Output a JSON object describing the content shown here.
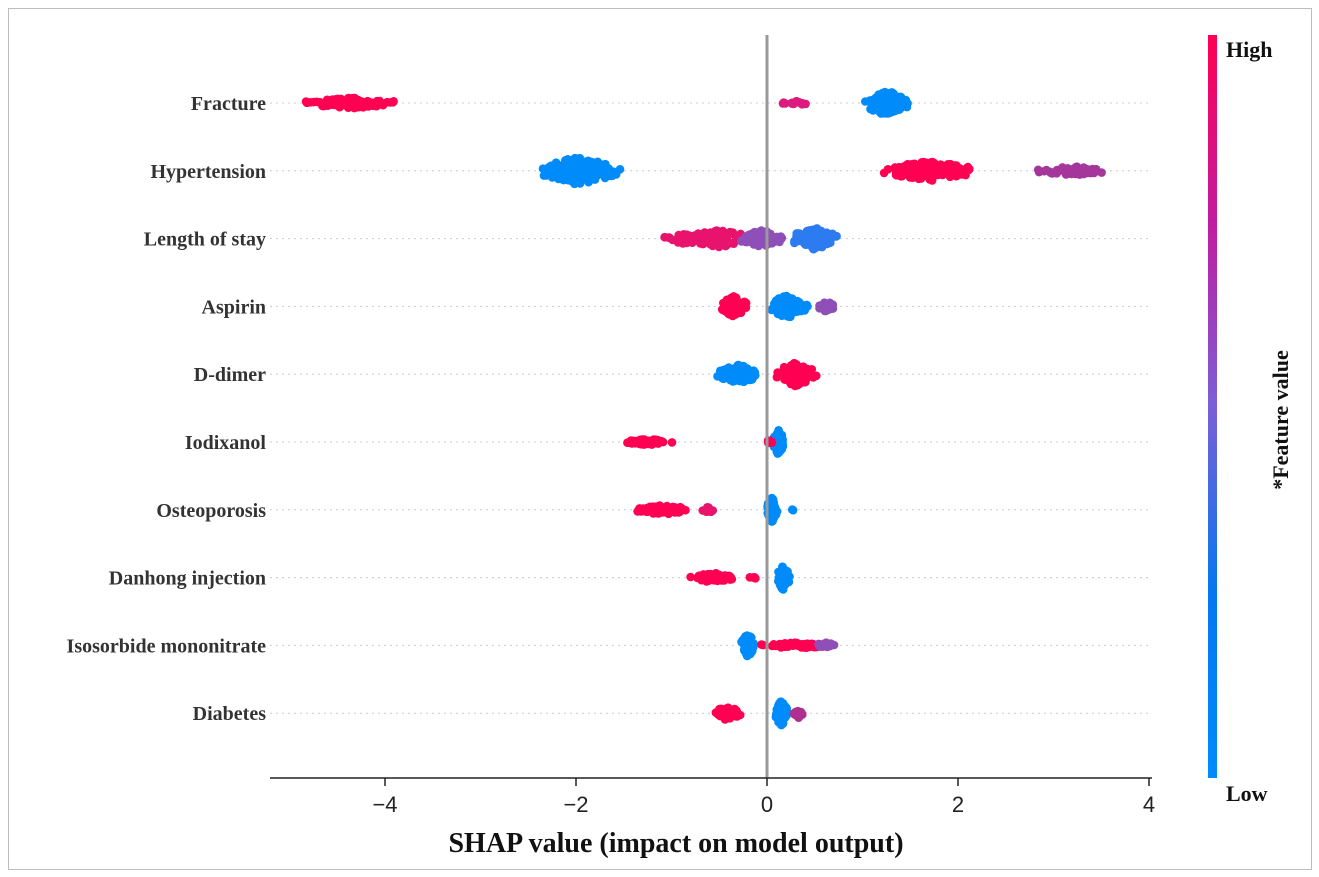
{
  "chart_data": {
    "type": "scatter",
    "title": "",
    "xlabel": "SHAP value (impact on model output)",
    "ylabel": "",
    "xlim": [
      -5.2,
      4.1
    ],
    "x_ticks": [
      -4,
      -2,
      0,
      2,
      4
    ],
    "x_tick_labels": [
      "−4",
      "−2",
      "0",
      "2",
      "4"
    ],
    "grid": "dotted horizontal per feature",
    "colorbar": {
      "title": "*Feature value",
      "high_label": "High",
      "low_label": "Low",
      "low_color": "#008bfb",
      "high_color": "#ff0052"
    },
    "features": [
      {
        "name": "Fracture",
        "clusters": [
          {
            "center": -4.35,
            "width": 1.0,
            "height": 11,
            "color": "#ff0052",
            "count": 90
          },
          {
            "center": 0.3,
            "width": 0.3,
            "height": 4,
            "color": "#dd1b7f",
            "count": 14
          },
          {
            "center": 1.25,
            "width": 0.5,
            "height": 26,
            "color": "#008bfb",
            "count": 110
          }
        ]
      },
      {
        "name": "Hypertension",
        "clusters": [
          {
            "center": -1.98,
            "width": 0.9,
            "height": 28,
            "color": "#008bfb",
            "count": 180
          },
          {
            "center": 1.7,
            "width": 1.0,
            "height": 20,
            "color": "#ff0052",
            "count": 150
          },
          {
            "center": 3.2,
            "width": 0.8,
            "height": 9,
            "color": "#a5379b",
            "count": 60
          }
        ]
      },
      {
        "name": "Length of stay",
        "clusters": [
          {
            "center": -0.55,
            "width": 1.1,
            "height": 18,
            "color": "#e8136c",
            "count": 110
          },
          {
            "center": -0.05,
            "width": 0.5,
            "height": 18,
            "color": "#8e4fb8",
            "count": 70
          },
          {
            "center": 0.5,
            "width": 0.55,
            "height": 22,
            "color": "#2c7bf0",
            "count": 110
          }
        ]
      },
      {
        "name": "Aspirin",
        "clusters": [
          {
            "center": -0.35,
            "width": 0.32,
            "height": 20,
            "color": "#ff0052",
            "count": 80
          },
          {
            "center": 0.22,
            "width": 0.45,
            "height": 24,
            "color": "#008bfb",
            "count": 90
          },
          {
            "center": 0.62,
            "width": 0.2,
            "height": 10,
            "color": "#8e4fb8",
            "count": 30
          }
        ]
      },
      {
        "name": "D-dimer",
        "clusters": [
          {
            "center": -0.3,
            "width": 0.45,
            "height": 20,
            "color": "#008bfb",
            "count": 90
          },
          {
            "center": 0.3,
            "width": 0.45,
            "height": 24,
            "color": "#ff0052",
            "count": 90
          }
        ]
      },
      {
        "name": "Iodixanol",
        "clusters": [
          {
            "center": -1.25,
            "width": 0.55,
            "height": 6,
            "color": "#ff0052",
            "count": 60
          },
          {
            "center": 0.12,
            "width": 0.12,
            "height": 26,
            "color": "#008bfb",
            "count": 70
          },
          {
            "center": -0.02,
            "width": 0.2,
            "height": 4,
            "color": "#ff0052",
            "count": 6
          }
        ]
      },
      {
        "name": "Osteoporosis",
        "clusters": [
          {
            "center": -1.1,
            "width": 0.6,
            "height": 10,
            "color": "#ff0052",
            "count": 60
          },
          {
            "center": -0.62,
            "width": 0.18,
            "height": 6,
            "color": "#e8136c",
            "count": 10
          },
          {
            "center": 0.05,
            "width": 0.12,
            "height": 26,
            "color": "#008bfb",
            "count": 70
          },
          {
            "center": 0.27,
            "width": 0.04,
            "height": 2,
            "color": "#008bfb",
            "count": 2
          }
        ]
      },
      {
        "name": "Danhong injection",
        "clusters": [
          {
            "center": -0.58,
            "width": 0.5,
            "height": 10,
            "color": "#ff0052",
            "count": 55
          },
          {
            "center": -0.15,
            "width": 0.1,
            "height": 4,
            "color": "#ff0052",
            "count": 4
          },
          {
            "center": 0.17,
            "width": 0.14,
            "height": 26,
            "color": "#008bfb",
            "count": 70
          }
        ]
      },
      {
        "name": "Isosorbide mononitrate",
        "clusters": [
          {
            "center": -0.2,
            "width": 0.14,
            "height": 26,
            "color": "#008bfb",
            "count": 70
          },
          {
            "center": 0.3,
            "width": 0.8,
            "height": 6,
            "color": "#ff0052",
            "count": 60
          },
          {
            "center": 0.62,
            "width": 0.2,
            "height": 6,
            "color": "#8e4fb8",
            "count": 15
          }
        ]
      },
      {
        "name": "Diabetes",
        "clusters": [
          {
            "center": -0.42,
            "width": 0.3,
            "height": 14,
            "color": "#ff0052",
            "count": 45
          },
          {
            "center": 0.15,
            "width": 0.14,
            "height": 26,
            "color": "#008bfb",
            "count": 70
          },
          {
            "center": 0.33,
            "width": 0.14,
            "height": 10,
            "color": "#b0308f",
            "count": 20
          }
        ]
      }
    ]
  }
}
